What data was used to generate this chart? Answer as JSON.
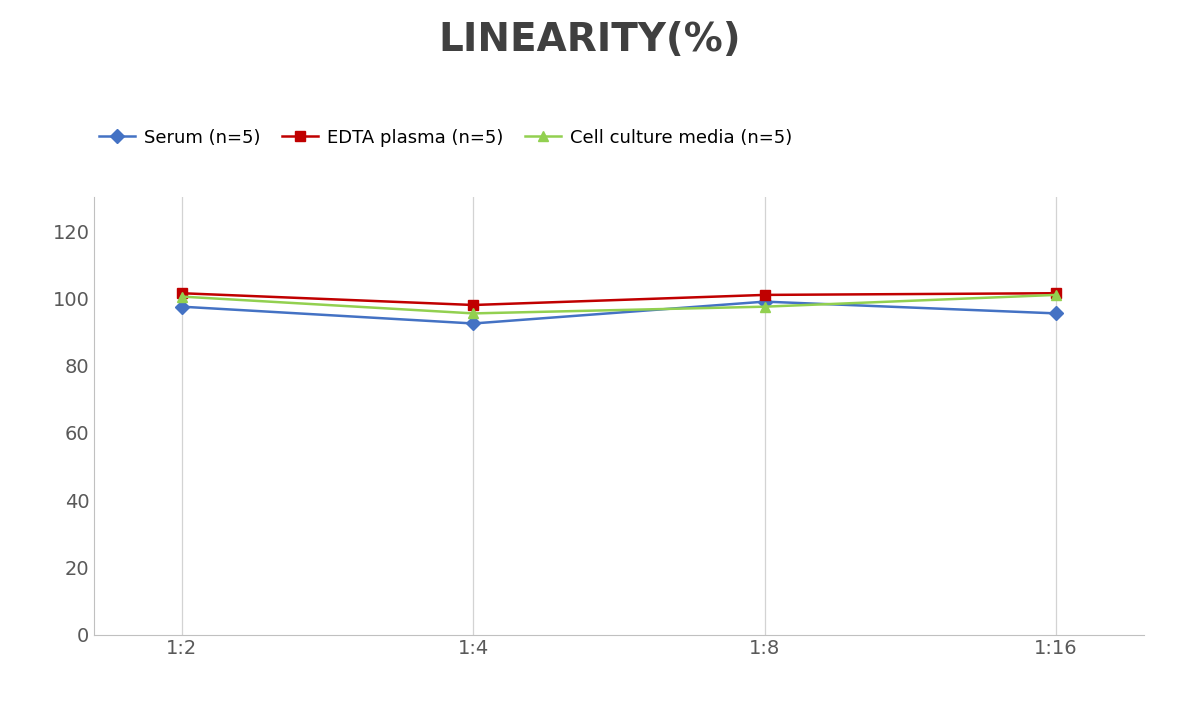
{
  "title": "LINEARITY(%)",
  "title_fontsize": 28,
  "title_fontweight": "bold",
  "x_labels": [
    "1:2",
    "1:4",
    "1:8",
    "1:16"
  ],
  "x_positions": [
    0,
    1,
    2,
    3
  ],
  "series": [
    {
      "label": "Serum (n=5)",
      "values": [
        97.5,
        92.5,
        99.0,
        95.5
      ],
      "color": "#4472C4",
      "marker": "D",
      "markersize": 7,
      "linewidth": 1.8
    },
    {
      "label": "EDTA plasma (n=5)",
      "values": [
        101.5,
        98.0,
        101.0,
        101.5
      ],
      "color": "#C00000",
      "marker": "s",
      "markersize": 7,
      "linewidth": 1.8
    },
    {
      "label": "Cell culture media (n=5)",
      "values": [
        100.5,
        95.5,
        97.5,
        101.0
      ],
      "color": "#92D050",
      "marker": "^",
      "markersize": 7,
      "linewidth": 1.8
    }
  ],
  "ylim": [
    0,
    130
  ],
  "yticks": [
    0,
    20,
    40,
    60,
    80,
    100,
    120
  ],
  "background_color": "#ffffff",
  "grid_color": "#d3d3d3",
  "legend_fontsize": 13,
  "tick_fontsize": 14,
  "axis_label_color": "#595959",
  "title_color": "#404040"
}
